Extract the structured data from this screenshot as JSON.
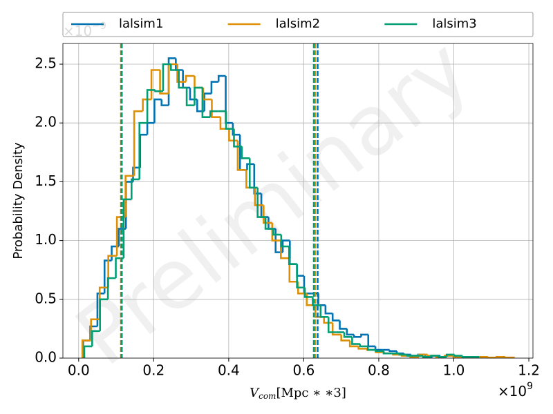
{
  "chart_data": {
    "type": "histogram",
    "watermark": "Preliminary",
    "ylabel": "Probability Density",
    "xlabel": {
      "main": "V",
      "sub": "com",
      "rest": "[Mpc ∗ ∗3]"
    },
    "x_offset": {
      "base": "×10",
      "exponent": "9"
    },
    "y_offset": {
      "base": "×10",
      "exponent": "−9"
    },
    "xlim": [
      -0.042,
      1.211
    ],
    "ylim": [
      0,
      2.676
    ],
    "xticks": [
      {
        "value": 0,
        "label": "0.0"
      },
      {
        "value": 0.2,
        "label": "0.2"
      },
      {
        "value": 0.4,
        "label": "0.4"
      },
      {
        "value": 0.6,
        "label": "0.6"
      },
      {
        "value": 0.8,
        "label": "0.8"
      },
      {
        "value": 1.0,
        "label": "1.0"
      },
      {
        "value": 1.2,
        "label": "1.2"
      }
    ],
    "yticks": [
      {
        "value": 0,
        "label": "0.0"
      },
      {
        "value": 0.5,
        "label": "0.5"
      },
      {
        "value": 1.0,
        "label": "1.0"
      },
      {
        "value": 1.5,
        "label": "1.5"
      },
      {
        "value": 2.0,
        "label": "2.0"
      },
      {
        "value": 2.5,
        "label": "2.5"
      }
    ],
    "grid": true,
    "legend": "top",
    "series": [
      {
        "name": "lalsim1",
        "color": "#0173b2",
        "bins": [
          0.012,
          0.031,
          0.05,
          0.069,
          0.088,
          0.107,
          0.126,
          0.145,
          0.164,
          0.183,
          0.202,
          0.221,
          0.24,
          0.259,
          0.278,
          0.297,
          0.316,
          0.335,
          0.354,
          0.373,
          0.392,
          0.411,
          0.43,
          0.449,
          0.468,
          0.487,
          0.506,
          0.525,
          0.544,
          0.563,
          0.582,
          0.601,
          0.62,
          0.639,
          0.658,
          0.677,
          0.696,
          0.715,
          0.734,
          0.753,
          0.772,
          0.791,
          0.81,
          0.829,
          0.848,
          0.867,
          0.886,
          0.905,
          0.924,
          0.943,
          0.962
        ],
        "values": [
          0.15,
          0.27,
          0.55,
          0.83,
          0.95,
          1.1,
          1.5,
          1.62,
          1.9,
          2.0,
          2.2,
          2.15,
          2.55,
          2.45,
          2.3,
          2.2,
          2.1,
          2.25,
          2.35,
          2.4,
          2.0,
          1.9,
          1.6,
          1.65,
          1.4,
          1.2,
          1.1,
          0.9,
          1.0,
          0.8,
          0.7,
          0.55,
          0.55,
          0.45,
          0.38,
          0.32,
          0.25,
          0.2,
          0.18,
          0.2,
          0.1,
          0.07,
          0.07,
          0.06,
          0.04,
          0.03,
          0.02,
          0.03,
          0.01,
          0.02
        ],
        "quantile_lines": [
          0.113,
          0.637
        ]
      },
      {
        "name": "lalsim2",
        "color": "#de8f05",
        "bins": [
          0.01,
          0.033,
          0.056,
          0.079,
          0.102,
          0.125,
          0.148,
          0.171,
          0.194,
          0.217,
          0.24,
          0.263,
          0.286,
          0.309,
          0.332,
          0.355,
          0.378,
          0.401,
          0.424,
          0.447,
          0.47,
          0.493,
          0.516,
          0.539,
          0.562,
          0.585,
          0.608,
          0.631,
          0.654,
          0.677,
          0.7,
          0.723,
          0.746,
          0.769,
          0.792,
          0.815,
          0.838,
          0.861,
          0.884,
          0.907,
          0.93,
          0.953,
          0.976,
          0.999,
          1.022,
          1.045,
          1.068,
          1.091,
          1.114,
          1.137,
          1.16
        ],
        "values": [
          0.15,
          0.33,
          0.6,
          0.87,
          1.2,
          1.55,
          2.1,
          2.2,
          2.45,
          2.25,
          2.5,
          2.35,
          2.4,
          2.3,
          2.2,
          2.05,
          1.95,
          1.85,
          1.6,
          1.45,
          1.3,
          1.15,
          1.0,
          0.85,
          0.65,
          0.55,
          0.45,
          0.35,
          0.3,
          0.2,
          0.15,
          0.1,
          0.08,
          0.07,
          0.05,
          0.04,
          0.03,
          0.02,
          0.01,
          0.03,
          0.02,
          0.01,
          0.02,
          0.01,
          0.01,
          0.01,
          0.01,
          0.005,
          0.01,
          0.005
        ],
        "quantile_lines": [
          0.114,
          0.63
        ]
      },
      {
        "name": "lalsim3",
        "color": "#029e73",
        "bins": [
          0.015,
          0.036,
          0.057,
          0.078,
          0.099,
          0.12,
          0.141,
          0.162,
          0.183,
          0.204,
          0.225,
          0.246,
          0.267,
          0.288,
          0.309,
          0.33,
          0.351,
          0.372,
          0.393,
          0.414,
          0.435,
          0.456,
          0.477,
          0.498,
          0.519,
          0.54,
          0.561,
          0.582,
          0.603,
          0.624,
          0.645,
          0.666,
          0.687,
          0.708,
          0.729,
          0.75,
          0.771,
          0.792,
          0.813,
          0.834,
          0.855,
          0.876,
          0.897,
          0.918,
          0.939,
          0.96,
          0.981,
          1.002,
          1.023,
          1.044,
          1.065
        ],
        "values": [
          0.1,
          0.23,
          0.5,
          0.68,
          0.85,
          1.35,
          1.52,
          2.0,
          2.28,
          2.27,
          2.5,
          2.45,
          2.3,
          2.15,
          2.3,
          2.05,
          2.1,
          2.1,
          1.95,
          1.8,
          1.7,
          1.45,
          1.2,
          1.1,
          1.05,
          0.95,
          0.8,
          0.6,
          0.52,
          0.45,
          0.35,
          0.22,
          0.22,
          0.18,
          0.12,
          0.1,
          0.07,
          0.06,
          0.04,
          0.04,
          0.03,
          0.02,
          0.02,
          0.01,
          0.02,
          0.01,
          0.03,
          0.02,
          0.01,
          0.01
        ],
        "quantile_lines": [
          0.115,
          0.627
        ]
      }
    ]
  }
}
